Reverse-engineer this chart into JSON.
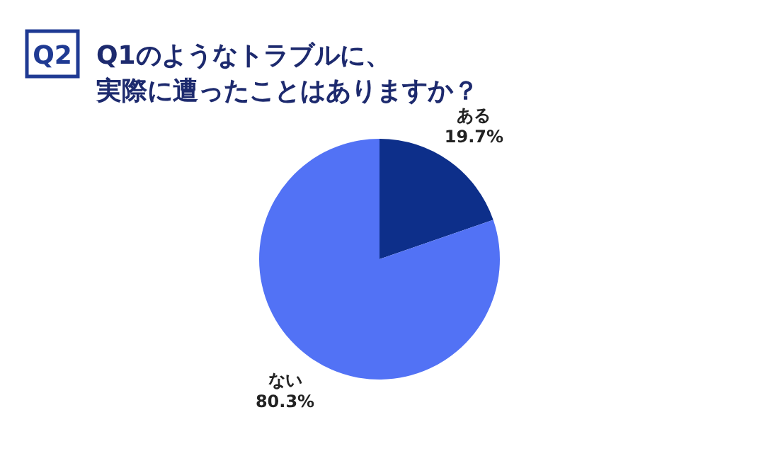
{
  "chart_data": {
    "type": "pie",
    "title": "Q1のようなトラブルに、実際に遭ったことはありますか？",
    "annotations": [
      "Q2"
    ],
    "categories": [
      "ある",
      "ない"
    ],
    "values": [
      19.7,
      80.3
    ],
    "colors": [
      "#0d2f8a",
      "#5272f5"
    ],
    "value_labels": [
      "19.7%",
      "80.3%"
    ]
  }
}
